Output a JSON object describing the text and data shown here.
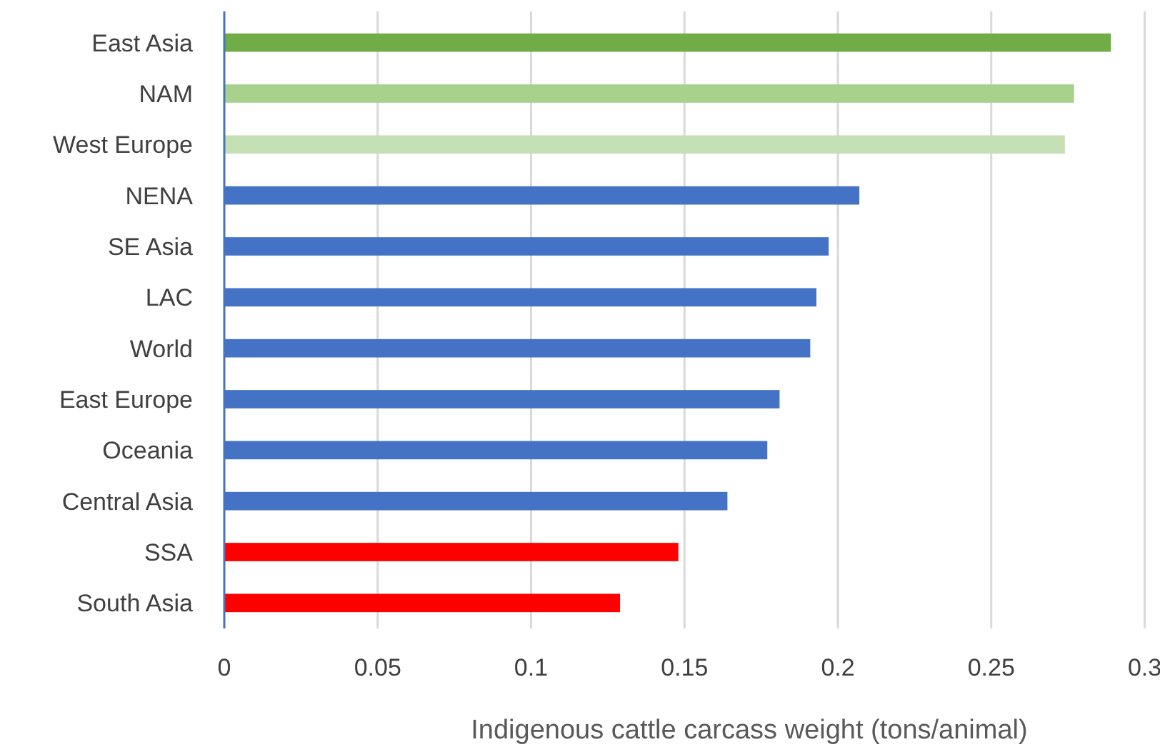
{
  "chart_data": {
    "type": "bar",
    "orientation": "horizontal",
    "xlabel": "Indigenous cattle carcass weight (tons/animal)",
    "categories": [
      "East Asia",
      "NAM",
      "West Europe",
      "NENA",
      "SE Asia",
      "LAC",
      "World",
      "East Europe",
      "Oceania",
      "Central Asia",
      "SSA",
      "South Asia"
    ],
    "values": [
      0.289,
      0.277,
      0.274,
      0.207,
      0.197,
      0.193,
      0.191,
      0.181,
      0.177,
      0.164,
      0.148,
      0.129
    ],
    "colors": [
      "#70ad47",
      "#a9d18e",
      "#c5e0b4",
      "#4472c4",
      "#4472c4",
      "#4472c4",
      "#4472c4",
      "#4472c4",
      "#4472c4",
      "#4472c4",
      "#ff0000",
      "#ff0000"
    ],
    "xlim": [
      0,
      0.305
    ],
    "xticks": [
      0,
      0.05,
      0.1,
      0.15,
      0.2,
      0.25,
      0.3
    ],
    "grid": "x"
  }
}
